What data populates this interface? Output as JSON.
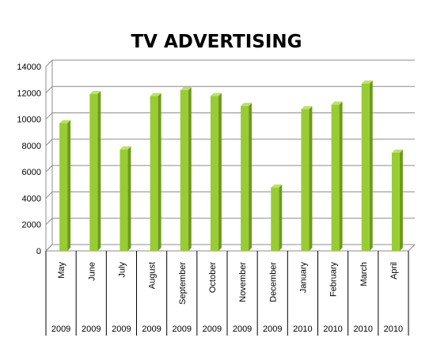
{
  "chart_data": {
    "type": "bar",
    "title": "TV ADVERTISING",
    "xlabel": "",
    "ylabel": "",
    "ylim": [
      0,
      14000
    ],
    "yticks": [
      0,
      2000,
      4000,
      6000,
      8000,
      10000,
      12000,
      14000
    ],
    "grid": true,
    "legend": "none",
    "categories": [
      "May",
      "June",
      "July",
      "August",
      "September",
      "October",
      "November",
      "December",
      "January",
      "February",
      "March",
      "April"
    ],
    "years": [
      "2009",
      "2009",
      "2009",
      "2009",
      "2009",
      "2009",
      "2009",
      "2009",
      "2010",
      "2010",
      "2010",
      "2010"
    ],
    "values": [
      9700,
      11900,
      7700,
      11750,
      12200,
      11750,
      11000,
      4800,
      10750,
      11100,
      12700,
      7450
    ],
    "colors": {
      "bar": "#99cc33",
      "bar_side": "#6e9a1e",
      "bar_top": "#bde070",
      "grid": "#8c8c8c"
    }
  }
}
